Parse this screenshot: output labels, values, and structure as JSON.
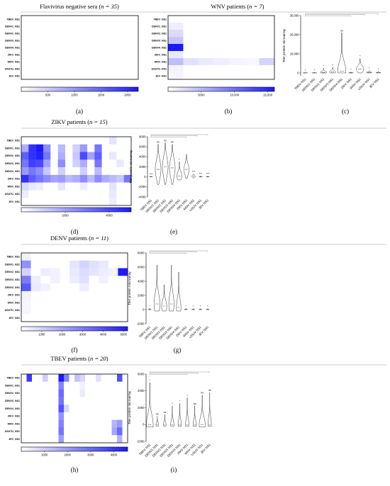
{
  "row_labels": [
    "TBEV_NS1",
    "DENV1_NS1",
    "DENV2_NS1",
    "DENV3_NS1",
    "DENV4_NS1",
    "ZIKV_NS1",
    "WNV_NS1",
    "USUTU_NS1",
    "JEV_NS1"
  ],
  "violin_categories": [
    "TBEV NS1",
    "DENV1 NS1",
    "DENV2 NS1",
    "DENV3 NS1",
    "DENV4 NS1",
    "ZIKV NS1",
    "WNV NS1",
    "USUV NS1",
    "JEV NS1"
  ],
  "violin_ylabel": "Titer protein microarray",
  "colors": {
    "heat_low": "#ffffff",
    "heat_high": "#1a1aff",
    "violin_edge": "#333333"
  },
  "panels": {
    "a": {
      "caption": "(a)",
      "title_pre": "Flavivirus negative sera (",
      "title_n": "n = 35",
      "title_post": ")"
    },
    "b": {
      "caption": "(b)",
      "title_pre": "WNV patients (",
      "title_n": "n = 7",
      "title_post": ")"
    },
    "c": {
      "caption": "(c)"
    },
    "d": {
      "caption": "(d)",
      "title_pre": "ZIKV patients (",
      "title_n": "n = 15",
      "title_post": ")"
    },
    "e": {
      "caption": "(e)"
    },
    "f": {
      "caption": "(f)",
      "title_pre": "DENV patients (",
      "title_n": "n = 11",
      "title_post": ")"
    },
    "g": {
      "caption": "(g)"
    },
    "h": {
      "caption": "(h)",
      "title_pre": "TBEV patients (",
      "title_n": "n = 20",
      "title_post": ")"
    },
    "i": {
      "caption": "(i)"
    }
  },
  "chart_data": [
    {
      "id": "a",
      "type": "heatmap",
      "rows": 9,
      "cols": 35,
      "colorbar_ticks": [
        "500",
        "1000",
        "1500",
        "2000"
      ],
      "colorbar_range": [
        0,
        2200
      ],
      "cells": []
    },
    {
      "id": "b",
      "type": "heatmap",
      "rows": 9,
      "cols": 7,
      "colorbar_ticks": [
        "5000",
        "10,000",
        "15,000"
      ],
      "colorbar_range": [
        0,
        16000
      ],
      "cells": [
        [
          1,
          0,
          1200
        ],
        [
          2,
          0,
          2500
        ],
        [
          3,
          0,
          4000
        ],
        [
          4,
          0,
          16000
        ],
        [
          5,
          0,
          1500
        ],
        [
          6,
          0,
          4500
        ],
        [
          6,
          1,
          2000
        ],
        [
          6,
          2,
          1500
        ],
        [
          6,
          3,
          1200
        ],
        [
          6,
          4,
          800
        ],
        [
          6,
          5,
          600
        ],
        [
          6,
          6,
          3000
        ],
        [
          7,
          0,
          800
        ],
        [
          8,
          0,
          600
        ]
      ]
    },
    {
      "id": "c",
      "type": "violin",
      "yticks": [
        "0",
        "10,000",
        "20,000",
        "30,000"
      ],
      "ymin": -1500,
      "ymax": 30000,
      "violins": [
        {
          "med": 0,
          "lo": 0,
          "hi": 100,
          "w": 0.6,
          "sig": "*"
        },
        {
          "med": 0,
          "lo": 0,
          "hi": 300,
          "w": 0.6,
          "sig": "*"
        },
        {
          "med": 300,
          "lo": 0,
          "hi": 2500,
          "w": 0.8,
          "sig": "*"
        },
        {
          "med": 500,
          "lo": 0,
          "hi": 3000,
          "w": 0.8,
          "sig": "*"
        },
        {
          "med": 1000,
          "lo": 0,
          "hi": 21000,
          "w": 1.0,
          "sig": "ns"
        },
        {
          "med": 0,
          "lo": 0,
          "hi": 500,
          "w": 0.6,
          "sig": "*"
        },
        {
          "med": 2000,
          "lo": 0,
          "hi": 7500,
          "w": 0.9,
          "sig": "*"
        },
        {
          "med": 200,
          "lo": 0,
          "hi": 1200,
          "w": 0.7,
          "sig": "*"
        },
        {
          "med": 100,
          "lo": 0,
          "hi": 800,
          "w": 0.6,
          "sig": "*"
        }
      ]
    },
    {
      "id": "d",
      "type": "heatmap",
      "rows": 9,
      "cols": 15,
      "colorbar_ticks": [
        "2000",
        "4000"
      ],
      "colorbar_range": [
        0,
        5000
      ],
      "cells": [
        [
          0,
          12,
          600
        ],
        [
          1,
          0,
          1800
        ],
        [
          1,
          1,
          4500
        ],
        [
          1,
          2,
          5000
        ],
        [
          1,
          3,
          2500
        ],
        [
          1,
          5,
          1500
        ],
        [
          1,
          7,
          1000
        ],
        [
          1,
          8,
          2200
        ],
        [
          1,
          10,
          3000
        ],
        [
          2,
          0,
          3500
        ],
        [
          2,
          1,
          4500
        ],
        [
          2,
          2,
          4800
        ],
        [
          2,
          3,
          3000
        ],
        [
          2,
          5,
          1800
        ],
        [
          2,
          7,
          1200
        ],
        [
          2,
          8,
          4000
        ],
        [
          2,
          9,
          2000
        ],
        [
          2,
          10,
          3500
        ],
        [
          2,
          12,
          500
        ],
        [
          3,
          0,
          3000
        ],
        [
          3,
          1,
          4200
        ],
        [
          3,
          2,
          4000
        ],
        [
          3,
          3,
          2000
        ],
        [
          3,
          5,
          2500
        ],
        [
          3,
          7,
          1000
        ],
        [
          3,
          8,
          1800
        ],
        [
          3,
          10,
          3000
        ],
        [
          3,
          13,
          500
        ],
        [
          4,
          0,
          2200
        ],
        [
          4,
          1,
          3000
        ],
        [
          4,
          2,
          2500
        ],
        [
          4,
          3,
          1200
        ],
        [
          4,
          5,
          1000
        ],
        [
          4,
          8,
          1000
        ],
        [
          4,
          10,
          1500
        ],
        [
          5,
          0,
          4500
        ],
        [
          5,
          1,
          3500
        ],
        [
          5,
          2,
          3000
        ],
        [
          5,
          3,
          2500
        ],
        [
          5,
          4,
          2000
        ],
        [
          5,
          5,
          2200
        ],
        [
          5,
          6,
          1500
        ],
        [
          5,
          7,
          1800
        ],
        [
          5,
          8,
          2500
        ],
        [
          5,
          9,
          1500
        ],
        [
          5,
          10,
          2500
        ],
        [
          5,
          11,
          1800
        ],
        [
          5,
          12,
          1500
        ],
        [
          5,
          13,
          1200
        ],
        [
          5,
          14,
          3000
        ],
        [
          6,
          0,
          800
        ],
        [
          6,
          1,
          500
        ],
        [
          6,
          2,
          400
        ],
        [
          6,
          5,
          600
        ],
        [
          6,
          8,
          400
        ],
        [
          6,
          12,
          600
        ],
        [
          7,
          0,
          400
        ],
        [
          7,
          12,
          500
        ],
        [
          8,
          12,
          400
        ]
      ]
    },
    {
      "id": "e",
      "type": "violin",
      "yticks": [
        "-4000",
        "-2000",
        "0",
        "2000",
        "4000",
        "6000",
        "8000"
      ],
      "ymin": -4000,
      "ymax": 8000,
      "violins": [
        {
          "med": 0,
          "lo": 0,
          "hi": 100,
          "w": 0.5,
          "sig": "***"
        },
        {
          "med": 1500,
          "lo": -1500,
          "hi": 6500,
          "w": 0.9,
          "sig": "ns"
        },
        {
          "med": 2000,
          "lo": -1500,
          "hi": 6800,
          "w": 0.9,
          "sig": "ns"
        },
        {
          "med": 1800,
          "lo": -1500,
          "hi": 6500,
          "w": 0.9,
          "sig": "ns"
        },
        {
          "med": 200,
          "lo": -600,
          "hi": 3000,
          "w": 0.8,
          "sig": "*"
        },
        {
          "med": 1500,
          "lo": -300,
          "hi": 4500,
          "w": 0.8,
          "sig": ""
        },
        {
          "med": 100,
          "lo": -200,
          "hi": 600,
          "w": 0.6,
          "sig": "***"
        },
        {
          "med": 0,
          "lo": 0,
          "hi": 200,
          "w": 0.5,
          "sig": "***"
        },
        {
          "med": 0,
          "lo": 0,
          "hi": 150,
          "w": 0.5,
          "sig": "***"
        }
      ]
    },
    {
      "id": "f",
      "type": "heatmap",
      "rows": 9,
      "cols": 11,
      "colorbar_ticks": [
        "1000",
        "2000",
        "3000",
        "4000",
        "5000"
      ],
      "colorbar_range": [
        0,
        5200
      ],
      "cells": [
        [
          0,
          0,
          300
        ],
        [
          1,
          0,
          2500
        ],
        [
          1,
          5,
          600
        ],
        [
          1,
          6,
          1000
        ],
        [
          1,
          7,
          700
        ],
        [
          1,
          8,
          500
        ],
        [
          2,
          0,
          1000
        ],
        [
          2,
          2,
          400
        ],
        [
          2,
          3,
          300
        ],
        [
          2,
          5,
          500
        ],
        [
          2,
          6,
          800
        ],
        [
          2,
          7,
          600
        ],
        [
          2,
          8,
          400
        ],
        [
          2,
          9,
          300
        ],
        [
          2,
          10,
          5200
        ],
        [
          3,
          0,
          3000
        ],
        [
          3,
          1,
          400
        ],
        [
          3,
          3,
          300
        ],
        [
          3,
          5,
          400
        ],
        [
          3,
          6,
          700
        ],
        [
          3,
          8,
          300
        ],
        [
          4,
          0,
          3800
        ],
        [
          4,
          1,
          500
        ],
        [
          4,
          2,
          300
        ],
        [
          4,
          6,
          400
        ],
        [
          5,
          0,
          300
        ],
        [
          6,
          0,
          200
        ],
        [
          7,
          0,
          200
        ]
      ]
    },
    {
      "id": "g",
      "type": "violin",
      "yticks": [
        "-2000",
        "0",
        "2000",
        "4000",
        "6000",
        "8000"
      ],
      "ymin": -2000,
      "ymax": 8000,
      "violins": [
        {
          "med": 0,
          "lo": 0,
          "hi": 200,
          "w": 0.5,
          "sig": "*"
        },
        {
          "med": 800,
          "lo": -200,
          "hi": 6300,
          "w": 0.9,
          "sig": ""
        },
        {
          "med": 500,
          "lo": -200,
          "hi": 3500,
          "w": 0.8,
          "sig": ""
        },
        {
          "med": 800,
          "lo": -200,
          "hi": 6300,
          "w": 0.8,
          "sig": ""
        },
        {
          "med": 300,
          "lo": -200,
          "hi": 5300,
          "w": 0.7,
          "sig": ""
        },
        {
          "med": 0,
          "lo": 0,
          "hi": 200,
          "w": 0.5,
          "sig": "*"
        },
        {
          "med": 0,
          "lo": 0,
          "hi": 150,
          "w": 0.5,
          "sig": "*"
        },
        {
          "med": 0,
          "lo": 0,
          "hi": 150,
          "w": 0.5,
          "sig": "*"
        },
        {
          "med": 0,
          "lo": 0,
          "hi": 150,
          "w": 0.5,
          "sig": "*"
        }
      ]
    },
    {
      "id": "h",
      "type": "heatmap",
      "rows": 9,
      "cols": 20,
      "colorbar_ticks": [
        "1000",
        "2000",
        "3000",
        "4000"
      ],
      "colorbar_range": [
        0,
        4600
      ],
      "cells": [
        [
          0,
          1,
          4000
        ],
        [
          0,
          4,
          1000
        ],
        [
          0,
          7,
          4600
        ],
        [
          0,
          8,
          2500
        ],
        [
          0,
          10,
          1200
        ],
        [
          0,
          11,
          800
        ],
        [
          0,
          14,
          600
        ],
        [
          0,
          18,
          3500
        ],
        [
          1,
          7,
          2500
        ],
        [
          1,
          11,
          300
        ],
        [
          2,
          7,
          3000
        ],
        [
          2,
          11,
          400
        ],
        [
          3,
          7,
          2800
        ],
        [
          4,
          7,
          3500
        ],
        [
          4,
          8,
          800
        ],
        [
          5,
          7,
          2200
        ],
        [
          6,
          7,
          2500
        ],
        [
          6,
          17,
          1500
        ],
        [
          6,
          18,
          2000
        ],
        [
          7,
          7,
          2800
        ],
        [
          7,
          17,
          1800
        ],
        [
          7,
          18,
          3000
        ],
        [
          8,
          7,
          2000
        ],
        [
          8,
          18,
          1500
        ]
      ]
    },
    {
      "id": "i",
      "type": "violin",
      "yticks": [
        "-2000",
        "0",
        "2000",
        "4000",
        "6000"
      ],
      "ymin": -2000,
      "ymax": 6000,
      "violins": [
        {
          "med": 0,
          "lo": -300,
          "hi": 5000,
          "w": 1.0,
          "sig": "*"
        },
        {
          "med": 0,
          "lo": -200,
          "hi": 1000,
          "w": 0.4,
          "sig": "ns"
        },
        {
          "med": 0,
          "lo": -200,
          "hi": 1200,
          "w": 0.4,
          "sig": "ns"
        },
        {
          "med": 0,
          "lo": -200,
          "hi": 2200,
          "w": 0.5,
          "sig": "*"
        },
        {
          "med": 0,
          "lo": -200,
          "hi": 2500,
          "w": 0.5,
          "sig": "*"
        },
        {
          "med": 0,
          "lo": -200,
          "hi": 3200,
          "w": 0.5,
          "sig": "*"
        },
        {
          "med": 0,
          "lo": -200,
          "hi": 2200,
          "w": 0.5,
          "sig": "ns"
        },
        {
          "med": 0,
          "lo": -300,
          "hi": 3500,
          "w": 0.9,
          "sig": "ns"
        },
        {
          "med": 0,
          "lo": -200,
          "hi": 3800,
          "w": 0.5,
          "sig": "ns"
        }
      ]
    }
  ]
}
